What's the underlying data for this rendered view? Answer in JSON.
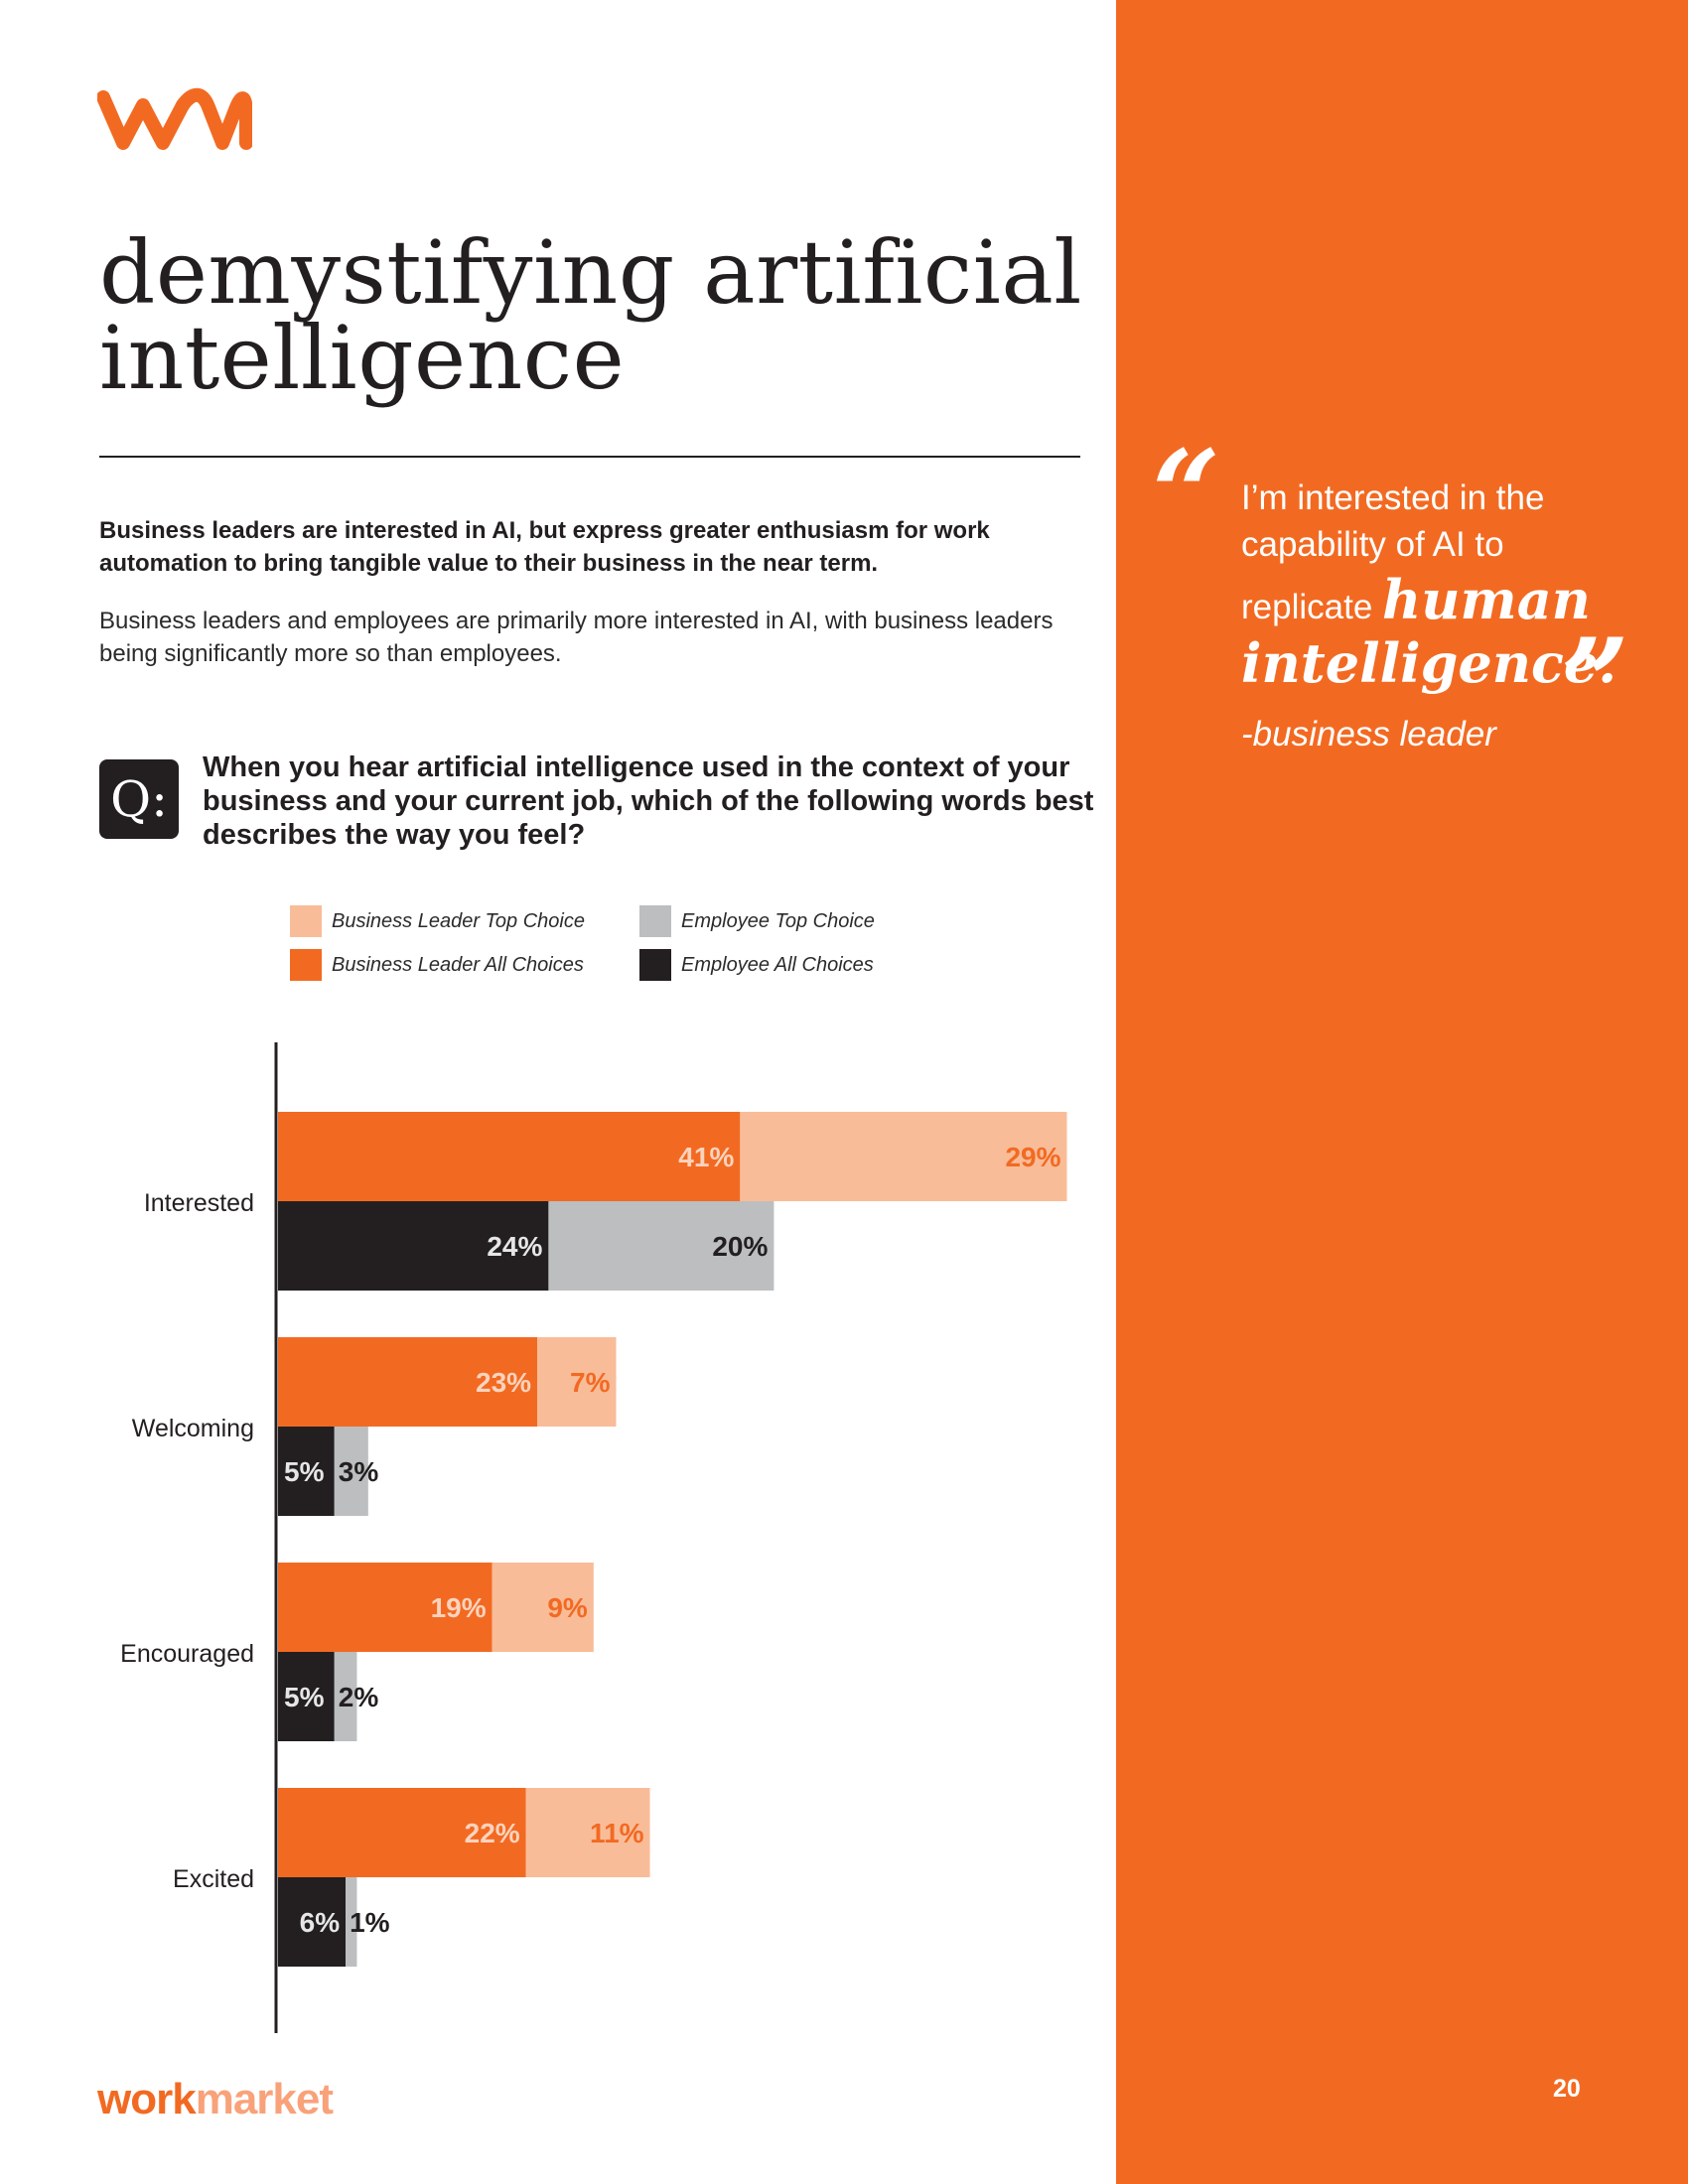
{
  "header": {
    "logo_name": "workmarket-logo-icon",
    "title": "demystifying artificial intelligence"
  },
  "intro": {
    "lead": "Business leaders are interested in AI, but express greater enthusiasm for work automation to bring tangible value to their business in the near term.",
    "body": "Business leaders and employees are primarily more interested in AI, with business leaders being significantly more so than employees."
  },
  "question": {
    "badge": "Q:",
    "text": "When you hear artificial intelligence used in the context of your business and your current job, which of the following words best describes the way you feel?"
  },
  "legend": {
    "items": [
      {
        "label": "Business Leader Top Choice",
        "color": "#f9bc98"
      },
      {
        "label": "Employee Top Choice",
        "color": "#bcbec0"
      },
      {
        "label": "Business Leader All Choices",
        "color": "#f26a22"
      },
      {
        "label": "Employee All Choices",
        "color": "#231f20"
      }
    ]
  },
  "chart_data": {
    "type": "bar",
    "orientation": "horizontal",
    "stacked": true,
    "categories": [
      "Interested",
      "Welcoming",
      "Encouraged",
      "Excited"
    ],
    "series": [
      {
        "name": "Business Leader All Choices",
        "group": "Business Leader",
        "color": "#f26a22",
        "label_color": "#fbd3bd",
        "values": [
          41,
          23,
          19,
          22
        ]
      },
      {
        "name": "Business Leader Top Choice",
        "group": "Business Leader",
        "color": "#f9bc98",
        "label_color": "#f26a22",
        "values": [
          29,
          7,
          9,
          11
        ]
      },
      {
        "name": "Employee All Choices",
        "group": "Employee",
        "color": "#231f20",
        "label_color": "#e6e6e6",
        "values": [
          24,
          5,
          5,
          6
        ]
      },
      {
        "name": "Employee Top Choice",
        "group": "Employee",
        "color": "#bcbec0",
        "label_color": "#231f20",
        "values": [
          20,
          3,
          2,
          1
        ]
      }
    ],
    "value_suffix": "%",
    "xlim": [
      0,
      70
    ],
    "title": "",
    "xlabel": "",
    "ylabel": "",
    "grid": false,
    "legend_position": "top"
  },
  "sidebar": {
    "quote_open": "“",
    "quote_close": "”",
    "quote_line_1": "I’m interested in the",
    "quote_line_2": "capability of AI to",
    "quote_line_3": "replicate",
    "quote_script_1": "human",
    "quote_script_2": "intelligence.",
    "attribution": "-business leader",
    "page_number": "20",
    "color": "#f26a22"
  },
  "footer": {
    "brand_part_1": "work",
    "brand_part_2": "market"
  }
}
